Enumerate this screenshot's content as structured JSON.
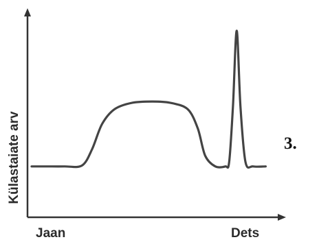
{
  "chart_data": {
    "type": "line",
    "title": "",
    "xlabel": "",
    "ylabel": "Külastaiate arv",
    "x_tick_labels": [
      "Jaan",
      "Dets"
    ],
    "x": [
      0,
      0.06,
      0.13,
      0.2,
      0.24,
      0.28,
      0.33,
      0.4,
      0.48,
      0.55,
      0.62,
      0.66,
      0.69,
      0.73,
      0.77,
      0.785,
      0.8,
      0.815,
      0.83,
      0.85,
      0.88,
      0.93
    ],
    "y": [
      1.2,
      1.2,
      1.2,
      1.22,
      1.6,
      2.2,
      2.55,
      2.7,
      2.73,
      2.7,
      2.55,
      2.1,
      1.45,
      1.2,
      1.2,
      1.3,
      2.6,
      4.4,
      2.6,
      1.3,
      1.2,
      1.2
    ],
    "xlim": [
      0,
      1
    ],
    "ylim": [
      0,
      4.8
    ],
    "grid": false,
    "line_color": "#444444",
    "axis_color": "#333333"
  },
  "panel_number": "3."
}
